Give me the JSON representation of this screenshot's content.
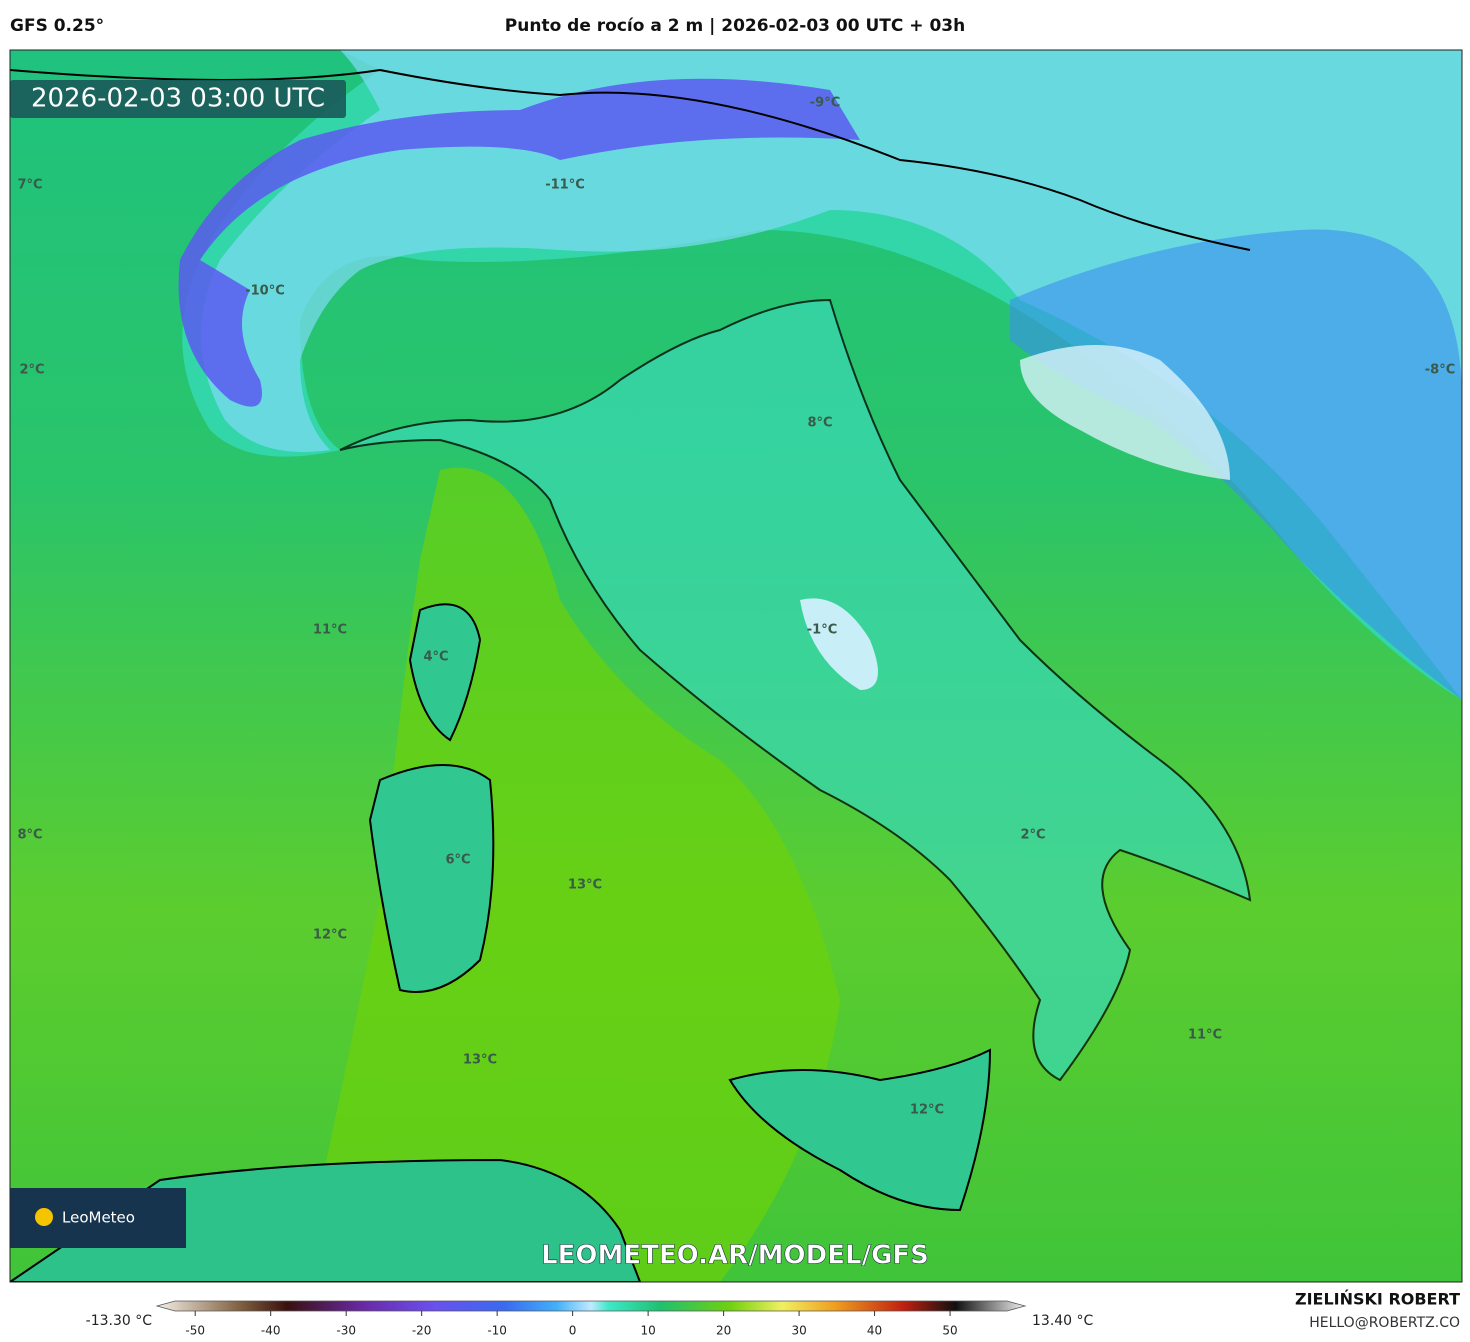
{
  "header": {
    "model": "GFS 0.25°",
    "title": "Punto de rocío a 2 m | 2026-02-03 00 UTC + 03h"
  },
  "map": {
    "timestamp": "2026-02-03 03:00 UTC",
    "labels": [
      "-9°C",
      "-11°C",
      "-10°C",
      "7°C",
      "2°C",
      "-8°C",
      "8°C",
      "-1°C",
      "11°C",
      "4°C",
      "8°C",
      "2°C",
      "6°C",
      "13°C",
      "12°C",
      "11°C",
      "13°C",
      "12°C"
    ],
    "watermark": "LEOMETEO.AR/MODEL/GFS",
    "logo": "LeoMeteo"
  },
  "colorbar": {
    "min_label": "-13.30 °C",
    "max_label": "13.40 °C",
    "lim": [
      -54,
      59
    ],
    "ticks": [
      -50,
      -40,
      -30,
      -20,
      -10,
      0,
      10,
      20,
      30,
      40,
      50
    ]
  },
  "footer": {
    "author": "ZIELIŃSKI ROBERT",
    "email": "HELLO@ROBERTZ.CO"
  }
}
